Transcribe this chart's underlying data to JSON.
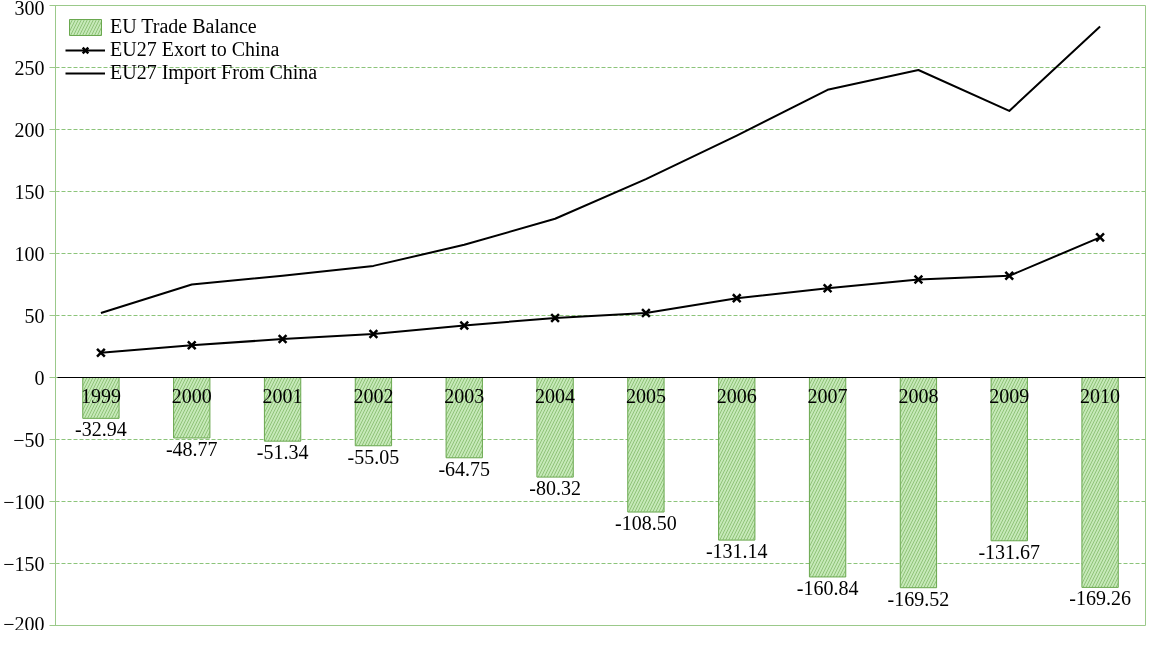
{
  "chart_data": {
    "type": "bar",
    "categories": [
      "1999",
      "2000",
      "2001",
      "2002",
      "2003",
      "2004",
      "2005",
      "2006",
      "2007",
      "2008",
      "2009",
      "2010"
    ],
    "series": [
      {
        "name": "EU Trade Balance",
        "color": "#c6e9b8",
        "values": [
          -32.94,
          -48.77,
          -51.34,
          -55.05,
          -64.75,
          -80.32,
          -108.5,
          -131.14,
          -160.84,
          -169.52,
          -131.67,
          -169.26
        ],
        "value_labels": [
          "-32.94",
          "-48.77",
          "-51.34",
          "-55.05",
          "-64.75",
          "-80.32",
          "-108.50",
          "-131.14",
          "-160.84",
          "-169.52",
          "-131.67",
          "-169.26"
        ]
      },
      {
        "name": "EU27 Exort to China",
        "type": "line",
        "color": "#000000",
        "marker": "cross",
        "values": [
          20,
          26,
          31,
          35,
          42,
          48,
          52,
          64,
          72,
          79,
          82,
          113
        ]
      },
      {
        "name": "EU27 Import From China",
        "type": "line",
        "color": "#000000",
        "marker": "none",
        "values": [
          52,
          75,
          82,
          90,
          107,
          128,
          160,
          195,
          232,
          248,
          215,
          283
        ]
      }
    ],
    "ylim": [
      -200,
      300
    ],
    "yticks": [
      -200,
      -150,
      -100,
      -50,
      0,
      50,
      100,
      150,
      200,
      250,
      300
    ],
    "grid": "y",
    "legend": "top left",
    "line_style": "solid"
  }
}
